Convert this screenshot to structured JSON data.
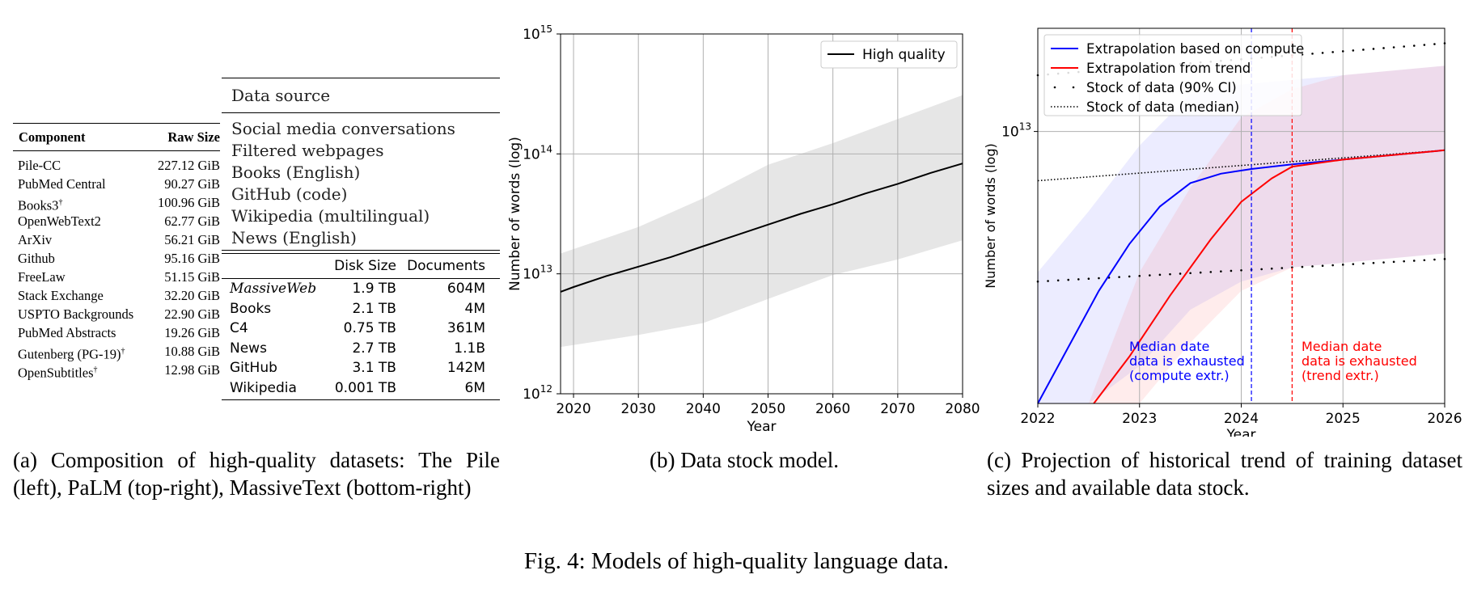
{
  "pile": {
    "headers": [
      "Component",
      "Raw Size"
    ],
    "rows": [
      {
        "name": "Pile-CC",
        "sup": "",
        "size": "227.12 GiB"
      },
      {
        "name": "PubMed Central",
        "sup": "",
        "size": "90.27 GiB"
      },
      {
        "name": "Books3",
        "sup": "†",
        "size": "100.96 GiB"
      },
      {
        "name": "OpenWebText2",
        "sup": "",
        "size": "62.77 GiB"
      },
      {
        "name": "ArXiv",
        "sup": "",
        "size": "56.21 GiB"
      },
      {
        "name": "Github",
        "sup": "",
        "size": "95.16 GiB"
      },
      {
        "name": "FreeLaw",
        "sup": "",
        "size": "51.15 GiB"
      },
      {
        "name": "Stack Exchange",
        "sup": "",
        "size": "32.20 GiB"
      },
      {
        "name": "USPTO Backgrounds",
        "sup": "",
        "size": "22.90 GiB"
      },
      {
        "name": "PubMed Abstracts",
        "sup": "",
        "size": "19.26 GiB"
      },
      {
        "name": "Gutenberg (PG-19)",
        "sup": "†",
        "size": "10.88 GiB"
      },
      {
        "name": "OpenSubtitles",
        "sup": "†",
        "size": "12.98 GiB"
      }
    ]
  },
  "palm": {
    "header": "Data source",
    "items": [
      "Social media conversations",
      "Filtered webpages",
      "Books (English)",
      "GitHub (code)",
      "Wikipedia (multilingual)",
      "News (English)"
    ]
  },
  "massivetext": {
    "headers": [
      "",
      "Disk Size",
      "Documents"
    ],
    "rows": [
      {
        "name": "MassiveWeb",
        "italic": true,
        "size": "1.9 TB",
        "docs": "604M"
      },
      {
        "name": "Books",
        "italic": false,
        "size": "2.1 TB",
        "docs": "4M"
      },
      {
        "name": "C4",
        "italic": false,
        "size": "0.75 TB",
        "docs": "361M"
      },
      {
        "name": "News",
        "italic": false,
        "size": "2.7 TB",
        "docs": "1.1B"
      },
      {
        "name": "GitHub",
        "italic": false,
        "size": "3.1 TB",
        "docs": "142M"
      },
      {
        "name": "Wikipedia",
        "italic": false,
        "size": "0.001 TB",
        "docs": "6M"
      }
    ]
  },
  "captions": {
    "a": "(a) Composition of high-quality datasets: The Pile (left), PaLM (top-right), MassiveText (bottom-right)",
    "b": "(b) Data stock model.",
    "c": "(c) Projection of historical trend of training dataset sizes and available data stock.",
    "figure": "Fig. 4: Models of high-quality language data."
  },
  "chart_data": [
    {
      "type": "line",
      "xlabel": "Year",
      "ylabel": "Number of words (log)",
      "yscale": "log",
      "xlim": [
        2018,
        2080
      ],
      "ylim_exp": [
        12,
        15
      ],
      "xticks": [
        2020,
        2030,
        2040,
        2050,
        2060,
        2070,
        2080
      ],
      "yticks": [
        "10^12",
        "10^13",
        "10^14",
        "10^15"
      ],
      "grid": true,
      "legend": "top-right",
      "series": [
        {
          "name": "High quality",
          "color": "#000000",
          "x": [
            2018,
            2020,
            2025,
            2030,
            2035,
            2040,
            2045,
            2050,
            2055,
            2060,
            2065,
            2070,
            2075,
            2080
          ],
          "y_log10": [
            12.85,
            12.89,
            12.98,
            13.06,
            13.14,
            13.23,
            13.32,
            13.41,
            13.5,
            13.58,
            13.67,
            13.75,
            13.84,
            13.92
          ]
        },
        {
          "name": "band",
          "color": "#e6e6e6",
          "x": [
            2018,
            2030,
            2040,
            2050,
            2060,
            2070,
            2080
          ],
          "lo_log10": [
            12.39,
            12.49,
            12.59,
            12.79,
            12.99,
            13.12,
            13.28
          ],
          "hi_log10": [
            13.17,
            13.39,
            13.63,
            13.91,
            14.09,
            14.29,
            14.49
          ]
        }
      ]
    },
    {
      "type": "line",
      "xlabel": "Year",
      "ylabel": "Number of words (log)",
      "yscale": "log",
      "xlim": [
        2022,
        2026
      ],
      "xticks": [
        2022,
        2023,
        2024,
        2025,
        2026
      ],
      "yticks": [
        "10^13"
      ],
      "grid": true,
      "legend": "top-left",
      "series": [
        {
          "name": "Extrapolation based on compute",
          "color": "#0000ff",
          "x": [
            2022,
            2022.3,
            2022.6,
            2022.9,
            2023.2,
            2023.5,
            2023.8,
            2024.1,
            2024.5,
            2025,
            2025.5,
            2026
          ],
          "y_log10": [
            12.42,
            12.54,
            12.66,
            12.76,
            12.84,
            12.89,
            12.91,
            12.92,
            12.93,
            12.94,
            12.95,
            12.96
          ]
        },
        {
          "name": "Extrapolation from trend",
          "color": "#ff0000",
          "x": [
            2022.55,
            2022.9,
            2023.3,
            2023.7,
            2024.0,
            2024.3,
            2024.5,
            2025,
            2025.5,
            2026
          ],
          "y_log10": [
            12.42,
            12.52,
            12.65,
            12.77,
            12.85,
            12.9,
            12.925,
            12.94,
            12.95,
            12.96
          ]
        },
        {
          "name": "Stock of data (90% CI)",
          "color": "#000000",
          "style": "sparse-dots"
        },
        {
          "name": "Stock of data (median)",
          "color": "#000000",
          "style": "dotted"
        }
      ],
      "vlines": [
        {
          "x": 2024.1,
          "color": "#0000ff",
          "label": "Median date\ndata is exhausted\n(compute extr.)"
        },
        {
          "x": 2024.5,
          "color": "#ff0000",
          "label": "Median date\ndata is exhausted\n(trend extr.)"
        }
      ]
    }
  ]
}
